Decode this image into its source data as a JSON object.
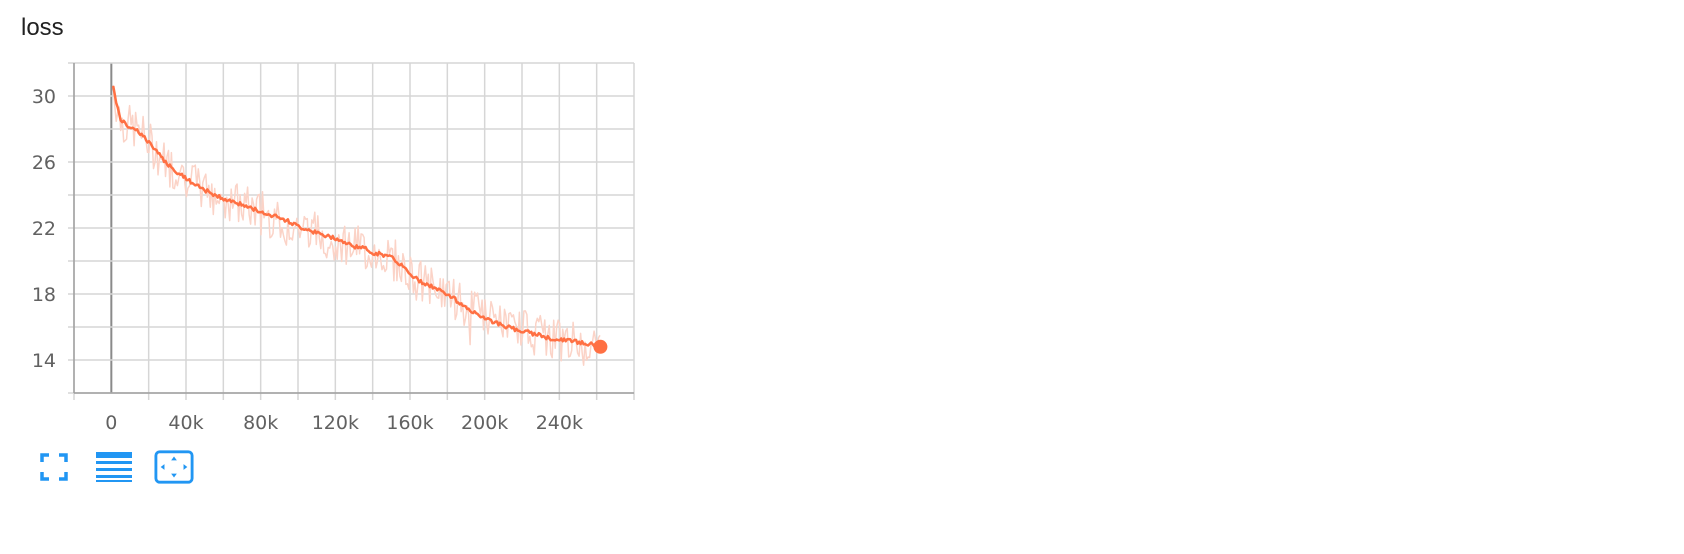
{
  "card": {
    "title": "loss"
  },
  "chart_data": {
    "type": "line",
    "title": "loss",
    "xlabel": "",
    "ylabel": "",
    "xlim": [
      -20000,
      280000
    ],
    "ylim": [
      12,
      32
    ],
    "x_ticks": [
      0,
      40000,
      80000,
      120000,
      160000,
      200000,
      240000
    ],
    "x_tick_labels": [
      "0",
      "40k",
      "80k",
      "120k",
      "160k",
      "200k",
      "240k"
    ],
    "y_ticks": [
      14,
      18,
      22,
      26,
      30
    ],
    "y_tick_labels": [
      "14",
      "18",
      "22",
      "26",
      "30"
    ],
    "grid": true,
    "colors": {
      "smoothed": "#ff7043",
      "raw": "#fbd3c7",
      "grid": "#d6d6d6",
      "axis": "#9e9e9e"
    },
    "series": [
      {
        "x": [
          1000,
          2500,
          5000,
          8000,
          12000,
          16000,
          20000,
          25000,
          30000,
          35000,
          40000,
          45000,
          50000,
          55000,
          60000,
          65000,
          70000,
          75000,
          80000,
          85000,
          90000,
          95000,
          100000,
          105000,
          110000,
          115000,
          120000,
          125000,
          130000,
          135000,
          140000,
          145000,
          150000,
          155000,
          160000,
          165000,
          170000,
          175000,
          180000,
          185000,
          190000,
          195000,
          200000,
          205000,
          210000,
          215000,
          220000,
          225000,
          230000,
          235000,
          240000,
          245000,
          250000,
          255000,
          262000
        ],
        "values": [
          30.7,
          29.6,
          28.6,
          28.2,
          28.1,
          27.7,
          27.2,
          26.5,
          25.9,
          25.4,
          25.0,
          24.6,
          24.3,
          24.0,
          23.8,
          23.6,
          23.4,
          23.2,
          23.0,
          22.8,
          22.6,
          22.4,
          22.1,
          21.9,
          21.7,
          21.5,
          21.4,
          21.1,
          20.9,
          20.8,
          20.5,
          20.4,
          20.2,
          19.8,
          19.2,
          18.8,
          18.5,
          18.3,
          18.0,
          17.6,
          17.2,
          16.8,
          16.6,
          16.3,
          16.1,
          15.9,
          15.8,
          15.6,
          15.5,
          15.3,
          15.2,
          15.2,
          15.1,
          15.0,
          14.8
        ]
      }
    ]
  },
  "toolbar": {
    "buttons": [
      {
        "name": "fullscreen-button",
        "icon": "fullscreen-icon"
      },
      {
        "name": "toggle-log-button",
        "icon": "lines-icon"
      },
      {
        "name": "fit-domain-button",
        "icon": "fit-domain-icon"
      }
    ]
  }
}
